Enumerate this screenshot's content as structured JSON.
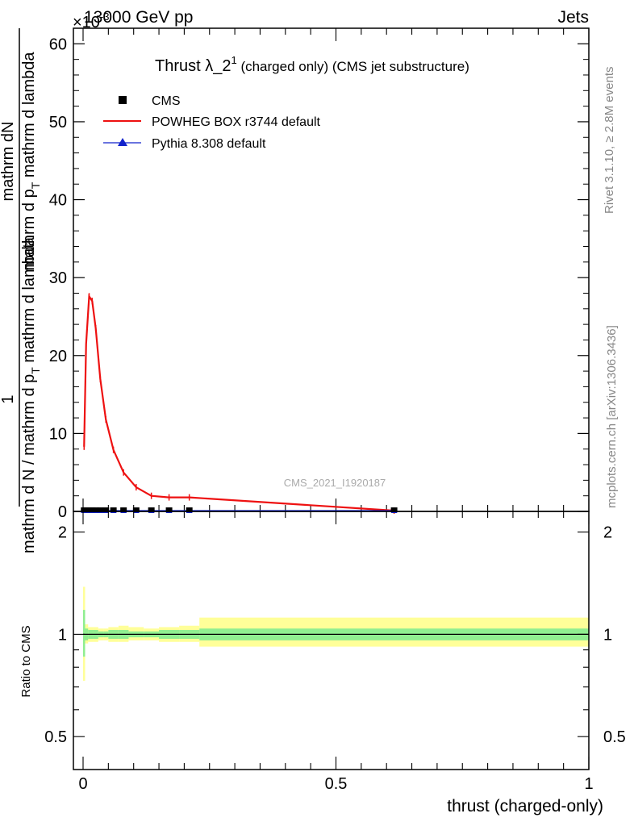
{
  "header": {
    "energy_label": "13000 GeV pp",
    "exponent_label": "×10",
    "exponent_power": "-3",
    "process_label": "Jets"
  },
  "side_labels": {
    "rivet": "Rivet 3.1.10, ≥ 2.8M events",
    "mcplots": "mcplots.cern.ch [arXiv:1306.3436]"
  },
  "watermark": "CMS_2021_I1920187",
  "colors": {
    "cms": "#000000",
    "powheg": "#ee1111",
    "pythia": "#1122cc",
    "band_inner": "#90ee90",
    "band_outer": "#ffff99"
  },
  "chart_data": [
    {
      "type": "line",
      "title_main": "Thrust λ_2",
      "title_sup": "1",
      "title_rest": " (charged only) (CMS jet substructure)",
      "ylabel_top": "mathrm dN",
      "ylabel_numerator": "1",
      "ylabel_bottom": "mathrm d N / mathrm d p",
      "ylabel_bottom_sub": "T",
      "ylabel_bottom_rest": " mathrm d lambda",
      "ylabel_top_extra": "mathrm d p",
      "ylabel_top_extra_sub": "T",
      "ylabel_top_extra_rest": " mathrm d lambda",
      "xlim": [
        0,
        1
      ],
      "ylim": [
        0,
        62
      ],
      "yticks": [
        0,
        10,
        20,
        30,
        40,
        50,
        60
      ],
      "ytick_labels": [
        "0",
        "10",
        "20",
        "30",
        "40",
        "50",
        "60"
      ],
      "legend": [
        {
          "name": "CMS",
          "marker": "square"
        },
        {
          "name": "POWHEG BOX r3744 default",
          "marker": "line"
        },
        {
          "name": "Pythia 8.308 default",
          "marker": "triangle"
        }
      ],
      "series": [
        {
          "name": "CMS",
          "x": [
            0.002,
            0.006,
            0.012,
            0.018,
            0.025,
            0.034,
            0.045,
            0.06,
            0.08,
            0.105,
            0.135,
            0.17,
            0.21,
            0.615
          ],
          "y": [
            0.1,
            0.1,
            0.1,
            0.1,
            0.1,
            0.1,
            0.1,
            0.1,
            0.1,
            0.1,
            0.1,
            0.1,
            0.1,
            0.1
          ]
        },
        {
          "name": "POWHEG BOX r3744 default",
          "x": [
            0.002,
            0.006,
            0.012,
            0.018,
            0.025,
            0.034,
            0.045,
            0.06,
            0.08,
            0.105,
            0.135,
            0.17,
            0.21,
            0.615
          ],
          "y": [
            8.3,
            21.5,
            27.6,
            27.0,
            23.5,
            17.0,
            11.8,
            7.9,
            5.0,
            3.1,
            2.0,
            1.8,
            1.8,
            0.1
          ]
        },
        {
          "name": "Pythia 8.308 default",
          "x": [
            0.002,
            0.006,
            0.012,
            0.018,
            0.025,
            0.034,
            0.045,
            0.06,
            0.08,
            0.105,
            0.135,
            0.17,
            0.21,
            0.615
          ],
          "y": [
            0.1,
            0.1,
            0.1,
            0.1,
            0.1,
            0.1,
            0.1,
            0.1,
            0.1,
            0.1,
            0.1,
            0.1,
            0.1,
            0.1
          ]
        }
      ]
    },
    {
      "type": "area",
      "ylabel": "Ratio to CMS",
      "xlabel": "thrust (charged-only)",
      "xlim": [
        0,
        1
      ],
      "ylim": [
        0.4,
        2.3
      ],
      "yscale": "log",
      "xticks": [
        0,
        0.5,
        1
      ],
      "xtick_labels": [
        "0",
        "0.5",
        "1"
      ],
      "yticks": [
        0.5,
        1,
        2
      ],
      "ytick_labels": [
        "0.5",
        "1",
        "2"
      ],
      "bands": {
        "edges": [
          0.0,
          0.004,
          0.01,
          0.02,
          0.03,
          0.04,
          0.05,
          0.07,
          0.09,
          0.12,
          0.15,
          0.19,
          0.23,
          1.0
        ],
        "inner_low": [
          0.86,
          0.96,
          0.97,
          0.97,
          0.98,
          0.98,
          0.97,
          0.97,
          0.98,
          0.98,
          0.97,
          0.97,
          0.96
        ],
        "inner_high": [
          1.18,
          1.04,
          1.03,
          1.03,
          1.02,
          1.02,
          1.03,
          1.03,
          1.02,
          1.02,
          1.03,
          1.03,
          1.04
        ],
        "outer_low": [
          0.73,
          0.94,
          0.95,
          0.95,
          0.96,
          0.96,
          0.95,
          0.95,
          0.96,
          0.96,
          0.95,
          0.95,
          0.92
        ],
        "outer_high": [
          1.38,
          1.07,
          1.05,
          1.05,
          1.04,
          1.04,
          1.05,
          1.06,
          1.05,
          1.04,
          1.05,
          1.06,
          1.12
        ]
      },
      "reference_line": 1
    }
  ]
}
